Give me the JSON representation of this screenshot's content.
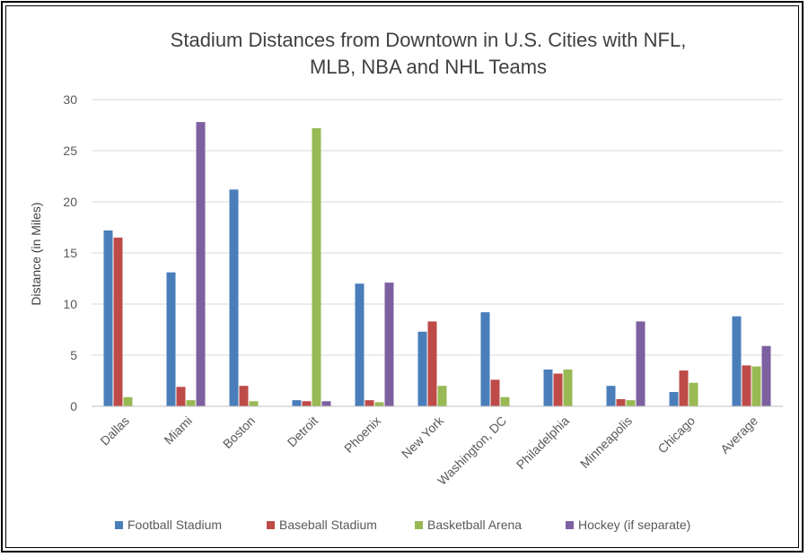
{
  "chart_data": {
    "type": "bar",
    "title_lines": [
      "Stadium Distances from Downtown in U.S. Cities with NFL,",
      "MLB, NBA and NHL Teams"
    ],
    "xlabel": "",
    "ylabel": "Distance (in Miles)",
    "ylim": [
      0,
      30
    ],
    "yticks": [
      "0",
      "5",
      "10",
      "15",
      "20",
      "25",
      "30"
    ],
    "grid": true,
    "legend_position": "bottom",
    "categories": [
      "Dallas",
      "Miami",
      "Boston",
      "Detroit",
      "Phoenix",
      "New York",
      "Washington, DC",
      "Philadelphia",
      "Minneapolis",
      "Chicago",
      "Average"
    ],
    "series": [
      {
        "name": "Football Stadium",
        "color": "#4A7EBB",
        "values": [
          17.2,
          13.1,
          21.2,
          0.6,
          12.0,
          7.3,
          9.2,
          3.6,
          2.0,
          1.4,
          8.8
        ]
      },
      {
        "name": "Baseball Stadium",
        "color": "#BE4B48",
        "values": [
          16.5,
          1.9,
          2.0,
          0.5,
          0.6,
          8.3,
          2.6,
          3.2,
          0.7,
          3.5,
          4.0
        ]
      },
      {
        "name": "Basketball Arena",
        "color": "#98B954",
        "values": [
          0.9,
          0.6,
          0.5,
          27.2,
          0.4,
          2.0,
          0.9,
          3.6,
          0.6,
          2.3,
          3.9
        ]
      },
      {
        "name": "Hockey (if separate)",
        "color": "#7D60A0",
        "values": [
          null,
          27.8,
          null,
          0.5,
          12.1,
          null,
          null,
          null,
          8.3,
          null,
          5.9
        ]
      }
    ]
  }
}
